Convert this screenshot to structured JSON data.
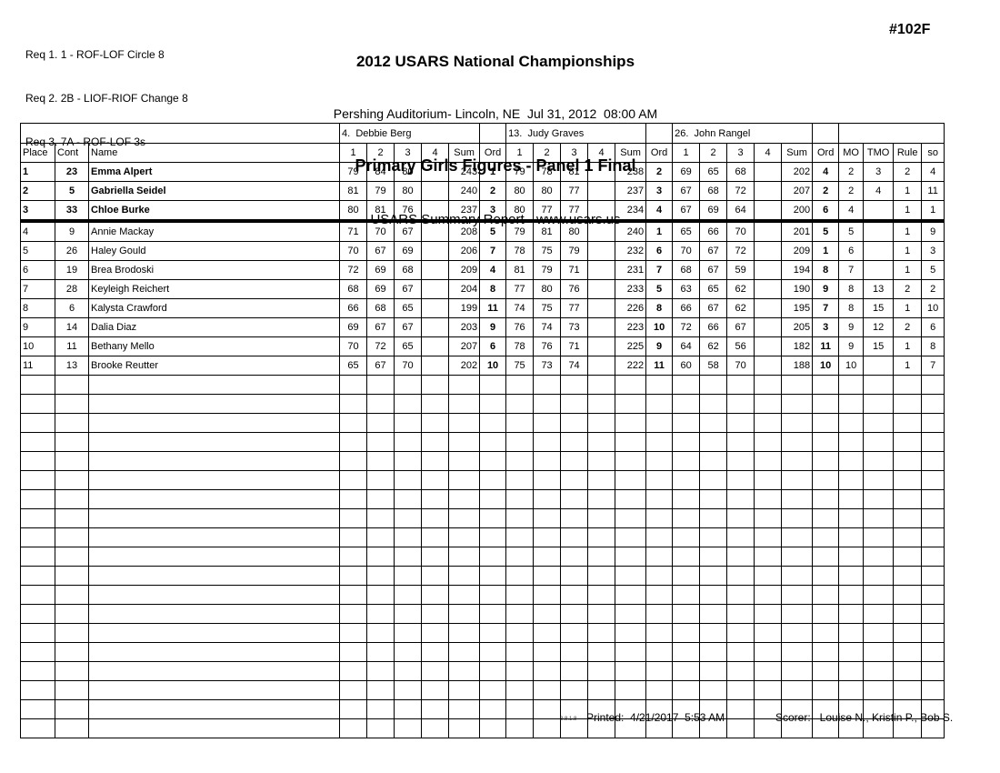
{
  "header": {
    "requirements": [
      "Req 1. 1 - ROF-LOF Circle 8",
      "Req 2. 2B - LIOF-RIOF Change 8",
      "Req 3. 7A - ROF-LOF 3s"
    ],
    "title": "2012 USARS National Championships",
    "venue_line": "Pershing Auditorium- Lincoln, NE  Jul 31, 2012  08:00 AM",
    "event_line": "Primary Girls Figures - Panel 1 Final",
    "report_line": "USARS Summary Report - www.usars.us",
    "event_number": "#102F"
  },
  "table": {
    "judges": [
      "4.  Debbie Berg",
      "13.  Judy Graves",
      "26.  John Rangel"
    ],
    "column_headers": {
      "place": "Place",
      "cont": "Cont",
      "name": "Name",
      "score_cols": [
        "1",
        "2",
        "3",
        "4"
      ],
      "sum": "Sum",
      "ord": "Ord",
      "tail": [
        "MO",
        "TMO",
        "Rule",
        "so"
      ]
    },
    "rows": [
      {
        "place": "1",
        "cont": "23",
        "name": "Emma Alpert",
        "bold": true,
        "judges": [
          {
            "s": [
              "79",
              "84",
              "80",
              ""
            ],
            "sum": "243",
            "ord": "1"
          },
          {
            "s": [
              "79",
              "78",
              "81",
              ""
            ],
            "sum": "238",
            "ord": "2"
          },
          {
            "s": [
              "69",
              "65",
              "68",
              ""
            ],
            "sum": "202",
            "ord": "4"
          }
        ],
        "mo": "2",
        "tmo": "3",
        "rule": "2",
        "so": "4"
      },
      {
        "place": "2",
        "cont": "5",
        "name": "Gabriella Seidel",
        "bold": true,
        "judges": [
          {
            "s": [
              "81",
              "79",
              "80",
              ""
            ],
            "sum": "240",
            "ord": "2"
          },
          {
            "s": [
              "80",
              "80",
              "77",
              ""
            ],
            "sum": "237",
            "ord": "3"
          },
          {
            "s": [
              "67",
              "68",
              "72",
              ""
            ],
            "sum": "207",
            "ord": "2"
          }
        ],
        "mo": "2",
        "tmo": "4",
        "rule": "1",
        "so": "11"
      },
      {
        "place": "3",
        "cont": "33",
        "name": "Chloe Burke",
        "bold": true,
        "judges": [
          {
            "s": [
              "80",
              "81",
              "76",
              ""
            ],
            "sum": "237",
            "ord": "3"
          },
          {
            "s": [
              "80",
              "77",
              "77",
              ""
            ],
            "sum": "234",
            "ord": "4"
          },
          {
            "s": [
              "67",
              "69",
              "64",
              ""
            ],
            "sum": "200",
            "ord": "6"
          }
        ],
        "mo": "4",
        "tmo": "",
        "rule": "1",
        "so": "1"
      },
      {
        "place": "4",
        "cont": "9",
        "name": "Annie Mackay",
        "bold": false,
        "judges": [
          {
            "s": [
              "71",
              "70",
              "67",
              ""
            ],
            "sum": "208",
            "ord": "5"
          },
          {
            "s": [
              "79",
              "81",
              "80",
              ""
            ],
            "sum": "240",
            "ord": "1"
          },
          {
            "s": [
              "65",
              "66",
              "70",
              ""
            ],
            "sum": "201",
            "ord": "5"
          }
        ],
        "mo": "5",
        "tmo": "",
        "rule": "1",
        "so": "9"
      },
      {
        "place": "5",
        "cont": "26",
        "name": "Haley Gould",
        "bold": false,
        "judges": [
          {
            "s": [
              "70",
              "67",
              "69",
              ""
            ],
            "sum": "206",
            "ord": "7"
          },
          {
            "s": [
              "78",
              "75",
              "79",
              ""
            ],
            "sum": "232",
            "ord": "6"
          },
          {
            "s": [
              "70",
              "67",
              "72",
              ""
            ],
            "sum": "209",
            "ord": "1"
          }
        ],
        "mo": "6",
        "tmo": "",
        "rule": "1",
        "so": "3"
      },
      {
        "place": "6",
        "cont": "19",
        "name": "Brea Brodoski",
        "bold": false,
        "judges": [
          {
            "s": [
              "72",
              "69",
              "68",
              ""
            ],
            "sum": "209",
            "ord": "4"
          },
          {
            "s": [
              "81",
              "79",
              "71",
              ""
            ],
            "sum": "231",
            "ord": "7"
          },
          {
            "s": [
              "68",
              "67",
              "59",
              ""
            ],
            "sum": "194",
            "ord": "8"
          }
        ],
        "mo": "7",
        "tmo": "",
        "rule": "1",
        "so": "5"
      },
      {
        "place": "7",
        "cont": "28",
        "name": "Keyleigh Reichert",
        "bold": false,
        "judges": [
          {
            "s": [
              "68",
              "69",
              "67",
              ""
            ],
            "sum": "204",
            "ord": "8"
          },
          {
            "s": [
              "77",
              "80",
              "76",
              ""
            ],
            "sum": "233",
            "ord": "5"
          },
          {
            "s": [
              "63",
              "65",
              "62",
              ""
            ],
            "sum": "190",
            "ord": "9"
          }
        ],
        "mo": "8",
        "tmo": "13",
        "rule": "2",
        "so": "2"
      },
      {
        "place": "8",
        "cont": "6",
        "name": "Kalysta Crawford",
        "bold": false,
        "judges": [
          {
            "s": [
              "66",
              "68",
              "65",
              ""
            ],
            "sum": "199",
            "ord": "11"
          },
          {
            "s": [
              "74",
              "75",
              "77",
              ""
            ],
            "sum": "226",
            "ord": "8"
          },
          {
            "s": [
              "66",
              "67",
              "62",
              ""
            ],
            "sum": "195",
            "ord": "7"
          }
        ],
        "mo": "8",
        "tmo": "15",
        "rule": "1",
        "so": "10"
      },
      {
        "place": "9",
        "cont": "14",
        "name": "Dalia Diaz",
        "bold": false,
        "judges": [
          {
            "s": [
              "69",
              "67",
              "67",
              ""
            ],
            "sum": "203",
            "ord": "9"
          },
          {
            "s": [
              "76",
              "74",
              "73",
              ""
            ],
            "sum": "223",
            "ord": "10"
          },
          {
            "s": [
              "72",
              "66",
              "67",
              ""
            ],
            "sum": "205",
            "ord": "3"
          }
        ],
        "mo": "9",
        "tmo": "12",
        "rule": "2",
        "so": "6"
      },
      {
        "place": "10",
        "cont": "11",
        "name": "Bethany Mello",
        "bold": false,
        "judges": [
          {
            "s": [
              "70",
              "72",
              "65",
              ""
            ],
            "sum": "207",
            "ord": "6"
          },
          {
            "s": [
              "78",
              "76",
              "71",
              ""
            ],
            "sum": "225",
            "ord": "9"
          },
          {
            "s": [
              "64",
              "62",
              "56",
              ""
            ],
            "sum": "182",
            "ord": "11"
          }
        ],
        "mo": "9",
        "tmo": "15",
        "rule": "1",
        "so": "8"
      },
      {
        "place": "11",
        "cont": "13",
        "name": "Brooke Reutter",
        "bold": false,
        "judges": [
          {
            "s": [
              "65",
              "67",
              "70",
              ""
            ],
            "sum": "202",
            "ord": "10"
          },
          {
            "s": [
              "75",
              "73",
              "74",
              ""
            ],
            "sum": "222",
            "ord": "11"
          },
          {
            "s": [
              "60",
              "58",
              "70",
              ""
            ],
            "sum": "188",
            "ord": "10"
          }
        ],
        "mo": "10",
        "tmo": "",
        "rule": "1",
        "so": "7"
      }
    ],
    "empty_row_count": 19
  },
  "footer": {
    "version": "3.8.1.8",
    "printed": "Printed:  4/21/2017  5:53 AM",
    "scorer": "Scorer:   Louise N., Kristin P., Bob S."
  }
}
